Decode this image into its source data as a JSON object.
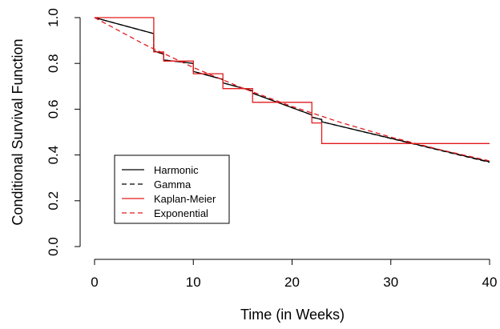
{
  "chart_data": {
    "type": "line",
    "xlabel": "Time (in Weeks)",
    "ylabel": "Conditional Survival Function",
    "xlim": [
      0,
      40
    ],
    "ylim": [
      0,
      1
    ],
    "x_ticks": [
      "0",
      "10",
      "20",
      "30",
      "40"
    ],
    "y_ticks": [
      "0.0",
      "0.2",
      "0.4",
      "0.6",
      "0.8",
      "1.0"
    ],
    "legend_position": "bottom-left",
    "series": [
      {
        "name": "Harmonic",
        "style": "solid",
        "color": "#000000",
        "points": [
          [
            0,
            1.0
          ],
          [
            6,
            0.93
          ],
          [
            6,
            0.855
          ],
          [
            7,
            0.84
          ],
          [
            7,
            0.815
          ],
          [
            10,
            0.8
          ],
          [
            10,
            0.765
          ],
          [
            13,
            0.73
          ],
          [
            13,
            0.715
          ],
          [
            16,
            0.68
          ],
          [
            16,
            0.67
          ],
          [
            22,
            0.575
          ],
          [
            22,
            0.565
          ],
          [
            23,
            0.555
          ],
          [
            23,
            0.545
          ],
          [
            40,
            0.37
          ]
        ]
      },
      {
        "name": "Gamma",
        "style": "dashed",
        "color": "#000000",
        "points": [
          [
            0,
            1.0
          ],
          [
            6,
            0.93
          ],
          [
            6,
            0.855
          ],
          [
            7,
            0.84
          ],
          [
            7,
            0.815
          ],
          [
            10,
            0.8
          ],
          [
            10,
            0.765
          ],
          [
            13,
            0.73
          ],
          [
            13,
            0.715
          ],
          [
            16,
            0.68
          ],
          [
            16,
            0.67
          ],
          [
            22,
            0.575
          ],
          [
            22,
            0.565
          ],
          [
            23,
            0.555
          ],
          [
            23,
            0.545
          ],
          [
            40,
            0.368
          ]
        ]
      },
      {
        "name": "Kaplan-Meier",
        "style": "step",
        "color": "#e41a1c",
        "points": [
          [
            0,
            1.0
          ],
          [
            6,
            1.0
          ],
          [
            6,
            0.85
          ],
          [
            7,
            0.85
          ],
          [
            7,
            0.81
          ],
          [
            10,
            0.81
          ],
          [
            10,
            0.755
          ],
          [
            13,
            0.755
          ],
          [
            13,
            0.69
          ],
          [
            16,
            0.69
          ],
          [
            16,
            0.63
          ],
          [
            22,
            0.63
          ],
          [
            22,
            0.54
          ],
          [
            23,
            0.54
          ],
          [
            23,
            0.45
          ],
          [
            40,
            0.45
          ]
        ]
      },
      {
        "name": "Exponential",
        "style": "dashed",
        "color": "#e41a1c",
        "points": [
          [
            0,
            1.0
          ],
          [
            5,
            0.884
          ],
          [
            10,
            0.782
          ],
          [
            15,
            0.692
          ],
          [
            20,
            0.612
          ],
          [
            25,
            0.541
          ],
          [
            30,
            0.478
          ],
          [
            35,
            0.423
          ],
          [
            40,
            0.374
          ]
        ]
      }
    ]
  }
}
